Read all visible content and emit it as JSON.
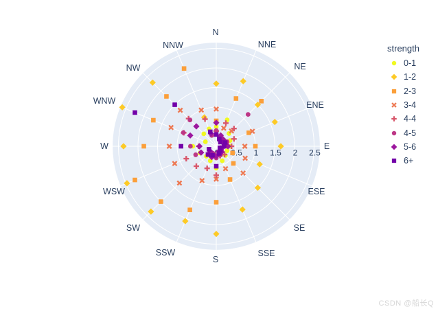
{
  "ui": {
    "watermark": "CSDN @船长Q"
  },
  "colors": {
    "plot_bg": "#e5ecf6",
    "grid": "#ffffff",
    "text": "#2a3f5f",
    "watermark": "#d6d6d6"
  },
  "chart_data": {
    "type": "scatter",
    "subtype": "polar-scatter-wind-rose",
    "title": "",
    "legend_title": "strength",
    "legend_position": "right",
    "grid": true,
    "angular_categories_clockwise_from_top": true,
    "directions": [
      "N",
      "NNE",
      "NE",
      "ENE",
      "E",
      "ESE",
      "SE",
      "SSE",
      "S",
      "SSW",
      "SW",
      "WSW",
      "W",
      "WNW",
      "NW",
      "NNW"
    ],
    "radial_tick_labels": [
      "0",
      "0.5",
      "1",
      "1.5",
      "2",
      "2.5"
    ],
    "radial_tick_values": [
      0,
      0.5,
      1,
      1.5,
      2,
      2.5
    ],
    "radial_range": [
      0,
      2.66
    ],
    "series": [
      {
        "name": "0-1",
        "symbol": "circle",
        "color": "#f0f921",
        "r": [
          0.5,
          0.73,
          0.46,
          0.38,
          0.35,
          0.3,
          0.33,
          0.4,
          0.56,
          0.4,
          0.36,
          0.45,
          0.6,
          0.3,
          0.45,
          0.48
        ]
      },
      {
        "name": "1-2",
        "symbol": "diamond",
        "color": "#fdca26",
        "r": [
          1.6,
          1.8,
          1.5,
          1.62,
          1.65,
          1.2,
          1.5,
          1.75,
          2.24,
          2.07,
          2.36,
          2.47,
          2.37,
          2.6,
          2.3,
          0.8
        ]
      },
      {
        "name": "2-3",
        "symbol": "square",
        "color": "#fb9f3a",
        "r": [
          0.65,
          1.32,
          1.63,
          0.9,
          1.0,
          0.45,
          0.62,
          0.92,
          1.43,
          1.76,
          2.0,
          2.25,
          1.85,
          1.74,
          1.8,
          2.15
        ]
      },
      {
        "name": "3-4",
        "symbol": "x",
        "color": "#ed7953",
        "r": [
          0.95,
          0.5,
          0.55,
          1.0,
          0.73,
          0.8,
          0.97,
          0.62,
          0.84,
          0.95,
          1.33,
          1.15,
          1.2,
          1.25,
          1.3,
          1.0
        ]
      },
      {
        "name": "4-4",
        "symbol": "cross",
        "color": "#d8576b",
        "r": [
          0.39,
          0.64,
          0.64,
          0.49,
          0.39,
          0.12,
          0.3,
          0.26,
          0.74,
          0.61,
          0.72,
          0.83,
          0.45,
          0.9,
          1.0,
          0.75
        ]
      },
      {
        "name": "4-5",
        "symbol": "circle",
        "color": "#bd3786",
        "r": [
          0.4,
          0.24,
          1.15,
          0.3,
          0.2,
          0.15,
          0.2,
          0.25,
          0.3,
          0.2,
          0.28,
          0.57,
          0.66,
          0.91,
          0.95,
          0.3
        ]
      },
      {
        "name": "5-6",
        "symbol": "diamond",
        "color": "#9c179e",
        "r": [
          0.6,
          0.3,
          0.25,
          0.2,
          0.3,
          0.15,
          0.2,
          0.15,
          0.25,
          0.3,
          0.2,
          0.42,
          0.43,
          0.72,
          0.72,
          0.35
        ]
      },
      {
        "name": "6+",
        "symbol": "square",
        "color": "#7201a8",
        "r": [
          0.3,
          0.2,
          0.15,
          0.25,
          0.2,
          0.1,
          0.15,
          0.2,
          0.51,
          0.25,
          0.3,
          0.2,
          0.9,
          2.25,
          1.5,
          0.4
        ]
      }
    ]
  }
}
